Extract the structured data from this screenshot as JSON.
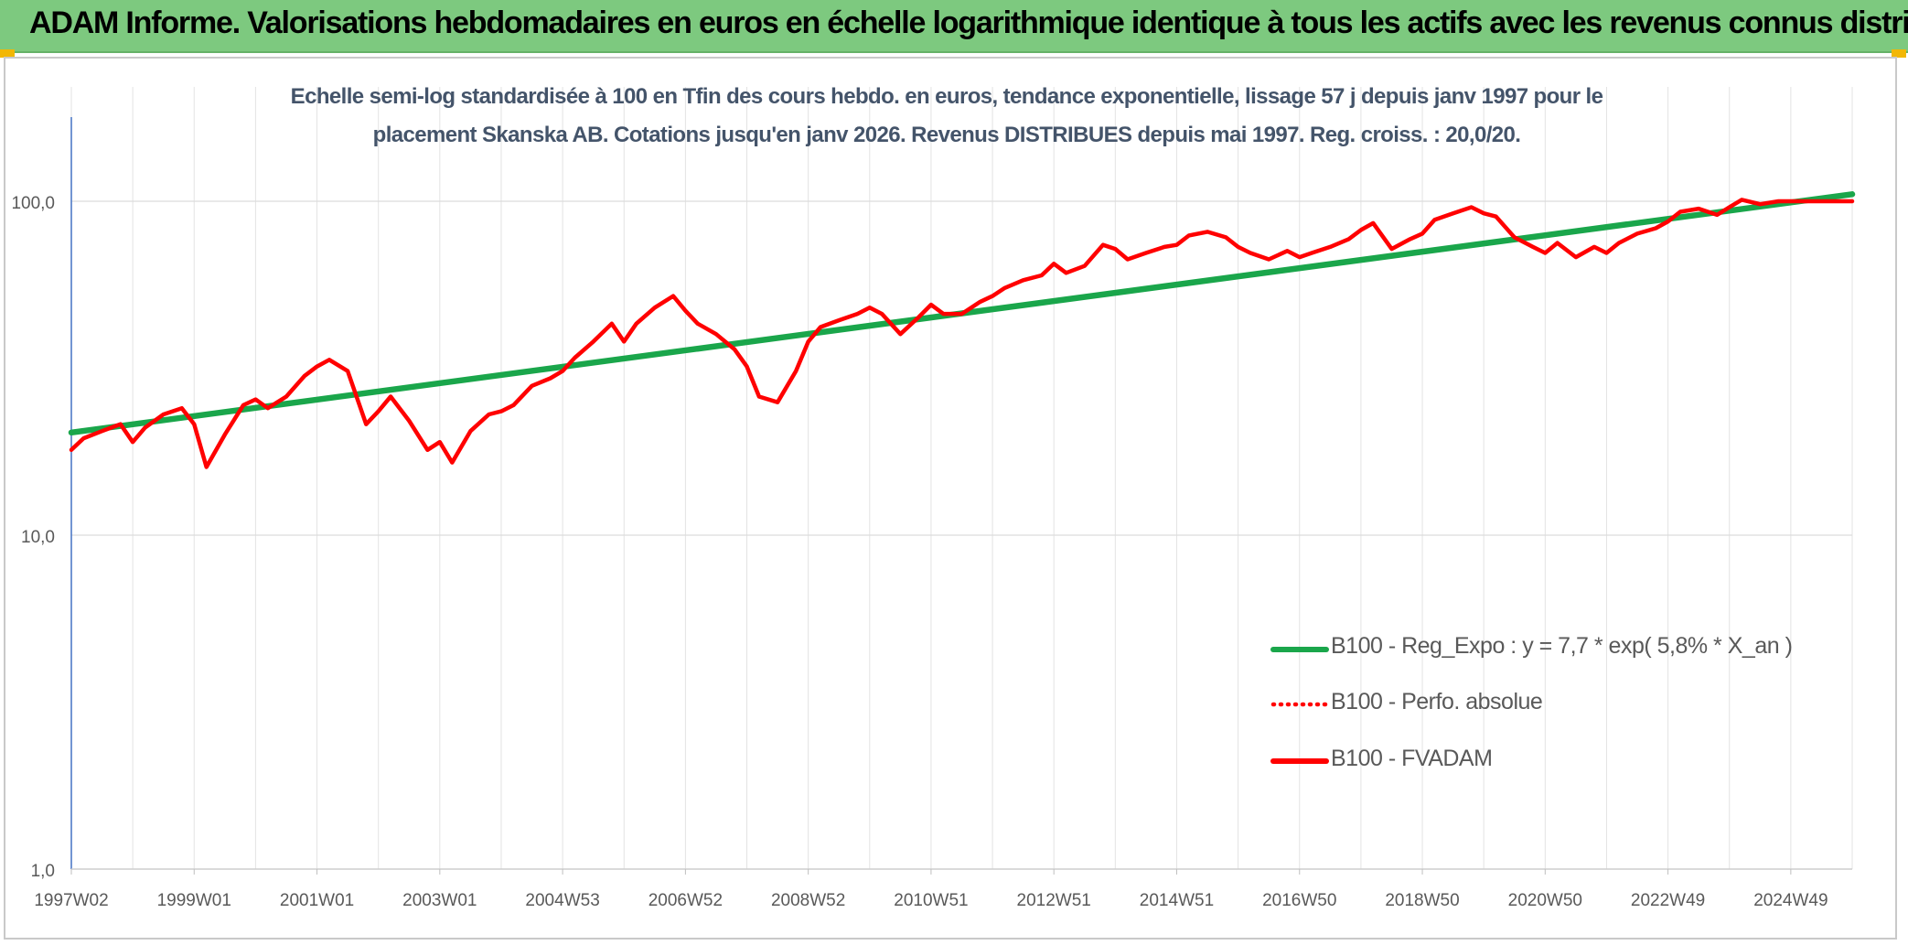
{
  "page": {
    "banner_title": "ADAM Informe. Valorisations hebdomadaires en euros en échelle logarithmique identique à tous les actifs avec les revenus connus distribués"
  },
  "chart_data": {
    "type": "line",
    "title_line1": "Echelle semi-log standardisée à 100 en Tfin des cours hebdo. en euros, tendance exponentielle, lissage 57 j depuis janv 1997 pour le",
    "title_line2": "placement Skanska AB. Cotations jusqu'en janv 2026. Revenus DISTRIBUES depuis mai 1997. Reg. croiss. : 20,0/20.",
    "y_scale": "log",
    "ylim": [
      1,
      100
    ],
    "y_ticks": [
      1,
      10,
      100
    ],
    "y_tick_labels": [
      "1,0",
      "10,0",
      "100,0"
    ],
    "x_range": [
      "1997W02",
      "2026W02"
    ],
    "x_ticks": [
      "1997W02",
      "1999W01",
      "2001W01",
      "2003W01",
      "2004W53",
      "2006W52",
      "2008W52",
      "2010W51",
      "2012W51",
      "2014W51",
      "2016W50",
      "2018W50",
      "2020W50",
      "2022W49",
      "2024W49"
    ],
    "x_tick_years": [
      1997.0,
      1999.0,
      2001.0,
      2003.0,
      2005.0,
      2007.0,
      2009.0,
      2011.0,
      2013.0,
      2015.0,
      2017.0,
      2019.0,
      2021.0,
      2023.0,
      2025.0
    ],
    "grid": true,
    "legend_position": "bottom-right",
    "series": [
      {
        "name": "B100 - Reg_Expo : y = 7,7 * exp( 5,8% *  X_an )",
        "color": "#1aa64b",
        "style": "solid",
        "x": [
          1997.0,
          2026.0
        ],
        "values": [
          20.3,
          105.0
        ]
      },
      {
        "name": "B100 - Perfo. absolue",
        "color": "#ff0000",
        "style": "dotted",
        "x": [],
        "values": []
      },
      {
        "name": "B100 - FVADAM",
        "color": "#ff0000",
        "style": "solid",
        "x": [
          1997.0,
          1997.2,
          1997.5,
          1997.8,
          1998.0,
          1998.2,
          1998.5,
          1998.8,
          1999.0,
          1999.2,
          1999.5,
          1999.8,
          2000.0,
          2000.2,
          2000.5,
          2000.8,
          2001.0,
          2001.2,
          2001.5,
          2001.8,
          2002.0,
          2002.2,
          2002.5,
          2002.8,
          2003.0,
          2003.2,
          2003.5,
          2003.8,
          2004.0,
          2004.2,
          2004.5,
          2004.8,
          2005.0,
          2005.2,
          2005.5,
          2005.8,
          2006.0,
          2006.2,
          2006.5,
          2006.8,
          2007.0,
          2007.2,
          2007.5,
          2007.8,
          2008.0,
          2008.2,
          2008.5,
          2008.8,
          2009.0,
          2009.2,
          2009.5,
          2009.8,
          2010.0,
          2010.2,
          2010.5,
          2010.8,
          2011.0,
          2011.2,
          2011.5,
          2011.8,
          2012.0,
          2012.2,
          2012.5,
          2012.8,
          2013.0,
          2013.2,
          2013.5,
          2013.8,
          2014.0,
          2014.2,
          2014.5,
          2014.8,
          2015.0,
          2015.2,
          2015.5,
          2015.8,
          2016.0,
          2016.2,
          2016.5,
          2016.8,
          2017.0,
          2017.2,
          2017.5,
          2017.8,
          2018.0,
          2018.2,
          2018.5,
          2018.8,
          2019.0,
          2019.2,
          2019.5,
          2019.8,
          2020.0,
          2020.2,
          2020.5,
          2020.8,
          2021.0,
          2021.2,
          2021.5,
          2021.8,
          2022.0,
          2022.2,
          2022.5,
          2022.8,
          2023.0,
          2023.2,
          2023.5,
          2023.8,
          2024.0,
          2024.2,
          2024.5,
          2024.8,
          2025.0,
          2025.2,
          2025.5,
          2025.8,
          2026.0
        ],
        "values": [
          18.0,
          19.5,
          20.5,
          21.5,
          19.0,
          21.0,
          23.0,
          24.0,
          21.5,
          16.0,
          20.0,
          24.5,
          25.5,
          24.0,
          26.0,
          30.0,
          32.0,
          33.5,
          31.0,
          21.5,
          23.5,
          26.0,
          22.0,
          18.0,
          19.0,
          16.5,
          20.5,
          23.0,
          23.5,
          24.5,
          28.0,
          29.5,
          31.0,
          34.0,
          38.0,
          43.0,
          38.0,
          43.0,
          48.0,
          52.0,
          47.0,
          43.0,
          40.0,
          36.0,
          32.0,
          26.0,
          25.0,
          31.0,
          38.0,
          42.0,
          44.0,
          46.0,
          48.0,
          46.0,
          40.0,
          45.0,
          49.0,
          46.0,
          46.0,
          50.0,
          52.0,
          55.0,
          58.0,
          60.0,
          65.0,
          61.0,
          64.0,
          74.0,
          72.0,
          67.0,
          70.0,
          73.0,
          74.0,
          79.0,
          81.0,
          78.0,
          73.0,
          70.0,
          67.0,
          71.0,
          68.0,
          70.0,
          73.0,
          77.0,
          82.0,
          86.0,
          72.0,
          77.0,
          80.0,
          88.0,
          92.0,
          96.0,
          92.0,
          90.0,
          78.0,
          73.0,
          70.0,
          75.0,
          68.0,
          73.0,
          70.0,
          75.0,
          80.0,
          83.0,
          87.0,
          93.0,
          95.0,
          91.0,
          96.0,
          101.0,
          98.0,
          100.0,
          100.0,
          100.0,
          100.0,
          100.0,
          100.0
        ]
      }
    ]
  }
}
